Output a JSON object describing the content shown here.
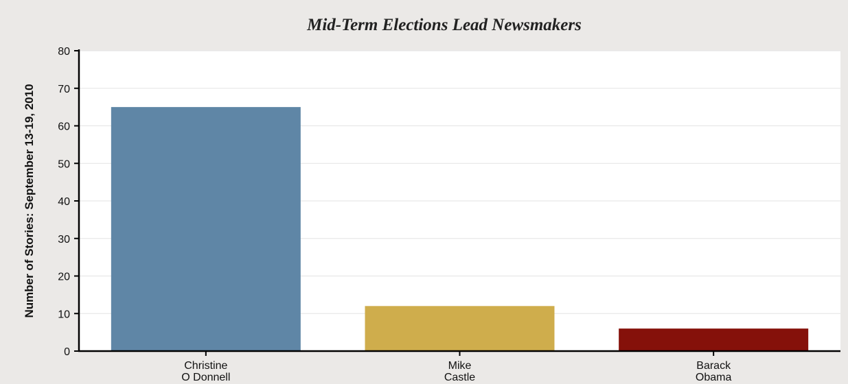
{
  "chart_data": {
    "type": "bar",
    "title": "Mid-Term Elections Lead Newsmakers",
    "xlabel": "",
    "ylabel": "Number of Stories: September 13-19, 2010",
    "ylim": [
      0,
      80
    ],
    "yticks": [
      0,
      10,
      20,
      30,
      40,
      50,
      60,
      70,
      80
    ],
    "grid": true,
    "categories": [
      [
        "Christine",
        "O Donnell"
      ],
      [
        "Mike",
        "Castle"
      ],
      [
        "Barack",
        "Obama"
      ]
    ],
    "values": [
      65,
      12,
      6
    ],
    "colors": [
      "#5f86a6",
      "#cfad4c",
      "#85110a"
    ]
  },
  "colors": {
    "background": "#ebe9e7",
    "plot_background": "#ffffff",
    "gridline": "#e3e3e3",
    "axis": "#000000"
  }
}
